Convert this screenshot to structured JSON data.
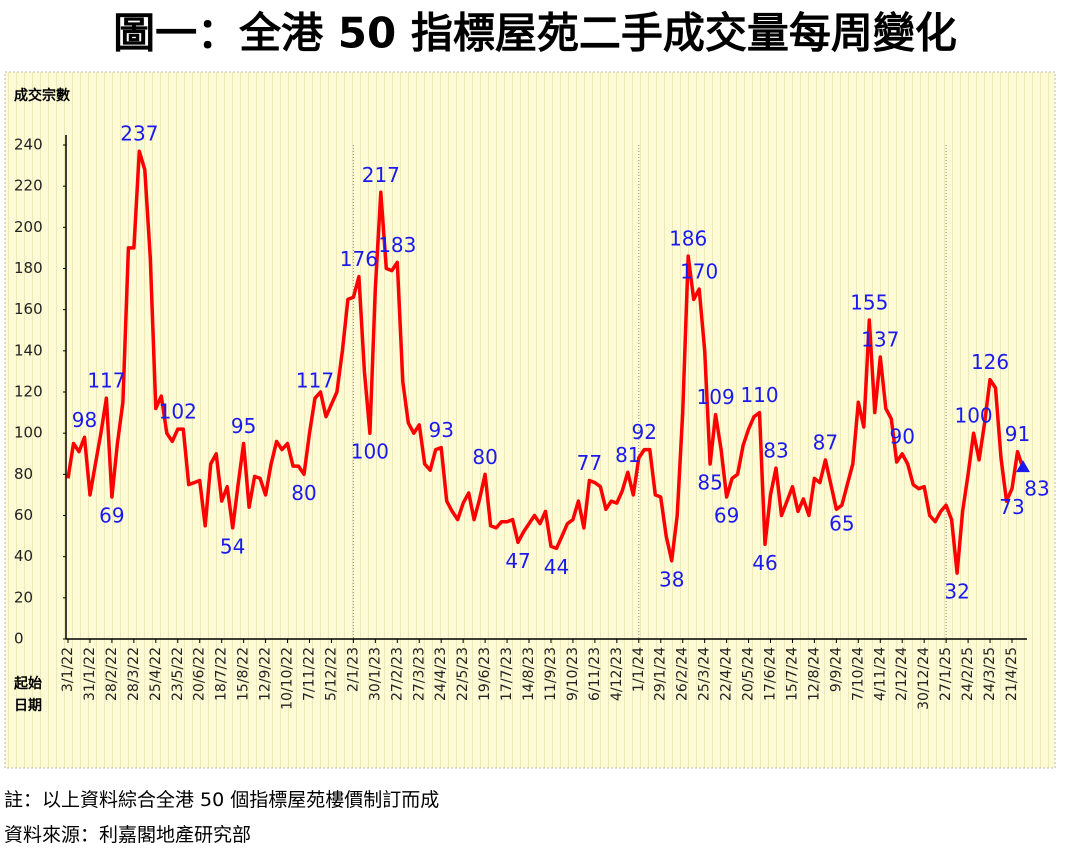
{
  "chart_data": {
    "type": "line",
    "title": "圖一：全港 50 指標屋苑二手成交量每周變化",
    "y_axis_label": "成交宗數",
    "x_axis_label": [
      "起始",
      "日期"
    ],
    "notes": [
      "註：以上資料綜合全港 50 個指標屋苑樓價制訂而成",
      "資料來源：利嘉閣地產研究部"
    ],
    "color": "#ff0000",
    "label_color": "#1a1aee",
    "ylim": [
      0,
      240
    ],
    "yticks": [
      0,
      20,
      40,
      60,
      80,
      100,
      120,
      140,
      160,
      180,
      200,
      220,
      240
    ],
    "grid": false,
    "categories": [
      "3/1/22",
      null,
      null,
      null,
      "31/1/22",
      null,
      null,
      null,
      "28/2/22",
      null,
      null,
      null,
      "28/3/22",
      null,
      null,
      null,
      "25/4/22",
      null,
      null,
      null,
      "23/5/22",
      null,
      null,
      null,
      "20/6/22",
      null,
      null,
      null,
      "18/7/22",
      null,
      null,
      null,
      "15/8/22",
      null,
      null,
      null,
      "12/9/22",
      null,
      null,
      null,
      "10/10/22",
      null,
      null,
      null,
      "7/11/22",
      null,
      null,
      null,
      "5/12/22",
      null,
      null,
      null,
      "2/1/23",
      null,
      null,
      null,
      "30/1/23",
      null,
      null,
      null,
      "27/2/23",
      null,
      null,
      null,
      "27/3/23",
      null,
      null,
      null,
      "24/4/23",
      null,
      null,
      null,
      "22/5/23",
      null,
      null,
      null,
      "19/6/23",
      null,
      null,
      null,
      "17/7/23",
      null,
      null,
      null,
      "14/8/23",
      null,
      null,
      null,
      "11/9/23",
      null,
      null,
      null,
      "9/10/23",
      null,
      null,
      null,
      "6/11/23",
      null,
      null,
      null,
      "4/12/23",
      null,
      null,
      null,
      "1/1/24",
      null,
      null,
      null,
      "29/1/24",
      null,
      null,
      null,
      "26/2/24",
      null,
      null,
      null,
      "25/3/24",
      null,
      null,
      null,
      "22/4/24",
      null,
      null,
      null,
      "20/5/24",
      null,
      null,
      null,
      "17/6/24",
      null,
      null,
      null,
      "15/7/24",
      null,
      null,
      null,
      "12/8/24",
      null,
      null,
      null,
      "9/9/24",
      null,
      null,
      null,
      "7/10/24",
      null,
      null,
      null,
      "4/11/24",
      null,
      null,
      null,
      "2/12/24",
      null,
      null,
      null,
      "30/12/24",
      null,
      null,
      null,
      "27/1/25",
      null,
      null,
      null,
      "24/2/25",
      null,
      null,
      null,
      "24/3/25",
      null,
      null,
      null,
      "21/4/25",
      null,
      null
    ],
    "values": [
      78,
      95,
      91,
      98,
      70,
      85,
      100,
      117,
      69,
      95,
      115,
      190,
      190,
      237,
      228,
      185,
      112,
      118,
      100,
      96,
      102,
      102,
      75,
      76,
      77,
      55,
      85,
      90,
      67,
      74,
      54,
      75,
      95,
      64,
      79,
      78,
      70,
      85,
      96,
      92,
      95,
      84,
      84,
      80,
      100,
      117,
      120,
      108,
      114,
      120,
      140,
      165,
      166,
      176,
      130,
      100,
      170,
      217,
      180,
      179,
      183,
      125,
      105,
      100,
      104,
      85,
      82,
      92,
      93,
      67,
      62,
      58,
      66,
      71,
      58,
      68,
      80,
      55,
      54,
      57,
      57,
      58,
      47,
      52,
      56,
      60,
      56,
      62,
      45,
      44,
      50,
      56,
      58,
      67,
      54,
      77,
      76,
      74,
      63,
      67,
      66,
      72,
      81,
      70,
      88,
      92,
      92,
      70,
      69,
      50,
      38,
      60,
      110,
      186,
      165,
      170,
      140,
      85,
      109,
      92,
      69,
      78,
      80,
      94,
      102,
      108,
      110,
      46,
      70,
      83,
      60,
      67,
      74,
      62,
      68,
      60,
      78,
      76,
      87,
      75,
      63,
      65,
      75,
      85,
      115,
      103,
      155,
      110,
      137,
      112,
      107,
      86,
      90,
      85,
      75,
      73,
      74,
      60,
      57,
      62,
      65,
      58,
      32,
      62,
      80,
      100,
      87,
      105,
      126,
      122,
      88,
      67,
      73,
      91,
      83
    ],
    "value_labels": [
      null,
      null,
      null,
      "98",
      null,
      null,
      null,
      "117",
      "69",
      null,
      null,
      null,
      null,
      "237",
      null,
      null,
      null,
      null,
      null,
      null,
      "102",
      null,
      null,
      null,
      null,
      null,
      null,
      null,
      null,
      null,
      "54",
      null,
      "95",
      null,
      null,
      null,
      null,
      null,
      null,
      null,
      null,
      null,
      null,
      "80",
      null,
      "117",
      null,
      null,
      null,
      null,
      null,
      null,
      null,
      "176",
      null,
      "100",
      null,
      "217",
      null,
      null,
      "183",
      null,
      null,
      null,
      null,
      null,
      null,
      null,
      "93",
      null,
      null,
      null,
      null,
      null,
      null,
      null,
      "80",
      null,
      null,
      null,
      null,
      null,
      "47",
      null,
      null,
      null,
      null,
      null,
      null,
      "44",
      null,
      null,
      null,
      null,
      null,
      "77",
      null,
      null,
      null,
      null,
      null,
      null,
      "81",
      null,
      null,
      "92",
      null,
      null,
      null,
      null,
      "38",
      null,
      null,
      "186",
      null,
      "170",
      null,
      "85",
      "109",
      null,
      "69",
      null,
      null,
      null,
      null,
      null,
      "110",
      "46",
      null,
      "83",
      null,
      null,
      null,
      null,
      null,
      null,
      null,
      null,
      "87",
      null,
      null,
      "65",
      null,
      null,
      null,
      null,
      "155",
      null,
      "137",
      null,
      null,
      null,
      "90",
      null,
      null,
      null,
      null,
      null,
      null,
      null,
      null,
      null,
      "32",
      null,
      null,
      "100",
      null,
      null,
      "126",
      null,
      null,
      null,
      "73",
      "91",
      "83"
    ]
  }
}
